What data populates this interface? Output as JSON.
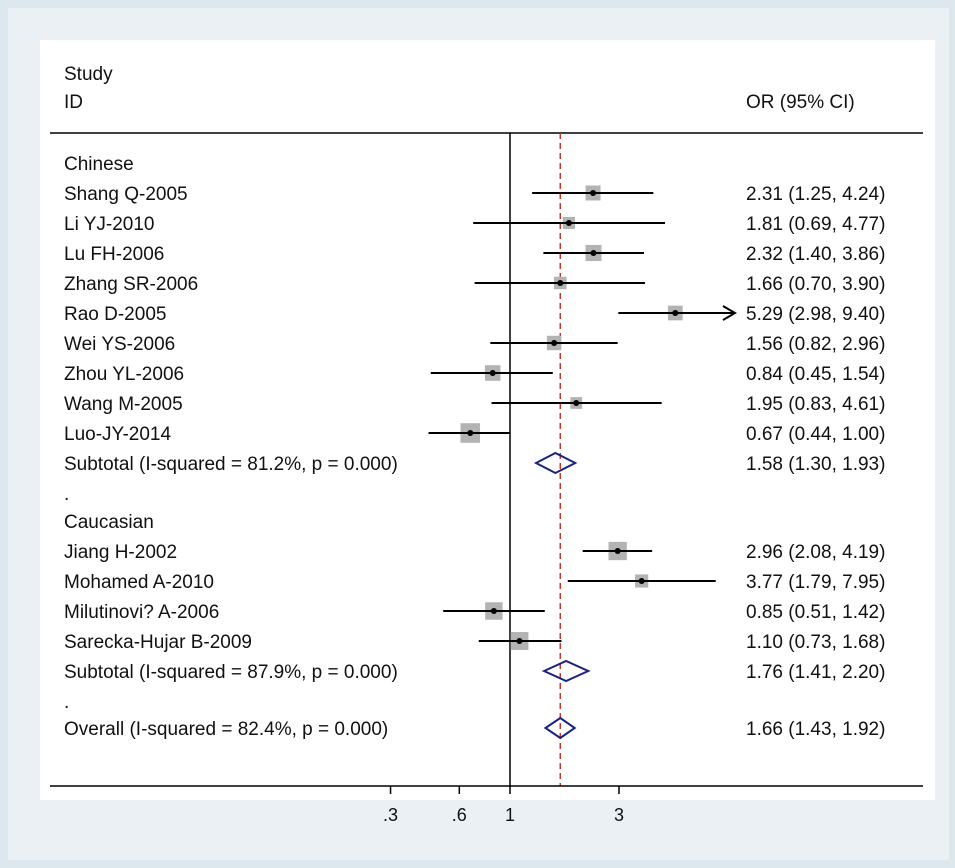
{
  "chart_data": {
    "type": "forest",
    "header": {
      "col1_line1": "Study",
      "col1_line2": "ID",
      "col2": "OR (95% CI)"
    },
    "x_scale": "log",
    "xlim": [
      0.3,
      10
    ],
    "null_line": 1,
    "overall_line": 1.66,
    "x_ticks": [
      {
        "value": 0.3,
        "label": ".3"
      },
      {
        "value": 0.6,
        "label": ".6"
      },
      {
        "value": 1,
        "label": "1"
      },
      {
        "value": 3,
        "label": "3"
      }
    ],
    "rows": [
      {
        "kind": "group",
        "label": "Chinese"
      },
      {
        "kind": "study",
        "label": "Shang Q-2005",
        "or": 2.31,
        "lo": 1.25,
        "hi": 4.24,
        "text": "2.31 (1.25, 4.24)",
        "weight": 1.0
      },
      {
        "kind": "study",
        "label": "Li YJ-2010",
        "or": 1.81,
        "lo": 0.69,
        "hi": 4.77,
        "text": "1.81 (0.69, 4.77)",
        "weight": 0.55
      },
      {
        "kind": "study",
        "label": "Lu FH-2006",
        "or": 2.32,
        "lo": 1.4,
        "hi": 3.86,
        "text": "2.32 (1.40, 3.86)",
        "weight": 1.2
      },
      {
        "kind": "study",
        "label": "Zhang SR-2006",
        "or": 1.66,
        "lo": 0.7,
        "hi": 3.9,
        "text": "1.66 (0.70, 3.90)",
        "weight": 0.6
      },
      {
        "kind": "study",
        "label": "Rao D-2005",
        "or": 5.29,
        "lo": 2.98,
        "hi": 9.4,
        "text": "5.29 (2.98, 9.40)",
        "weight": 0.95,
        "arrow": true
      },
      {
        "kind": "study",
        "label": "Wei YS-2006",
        "or": 1.56,
        "lo": 0.82,
        "hi": 2.96,
        "text": "1.56 (0.82, 2.96)",
        "weight": 0.9
      },
      {
        "kind": "study",
        "label": "Zhou YL-2006",
        "or": 0.84,
        "lo": 0.45,
        "hi": 1.54,
        "text": "0.84 (0.45, 1.54)",
        "weight": 1.1
      },
      {
        "kind": "study",
        "label": "Wang M-2005",
        "or": 1.95,
        "lo": 0.83,
        "hi": 4.61,
        "text": "1.95 (0.83, 4.61)",
        "weight": 0.5
      },
      {
        "kind": "study",
        "label": "Luo-JY-2014",
        "or": 0.67,
        "lo": 0.44,
        "hi": 1.0,
        "text": "0.67 (0.44, 1.00)",
        "weight": 2.0
      },
      {
        "kind": "subtotal",
        "label": "Subtotal  (I-squared = 81.2%, p = 0.000)",
        "or": 1.58,
        "lo": 1.3,
        "hi": 1.93,
        "text": "1.58 (1.30, 1.93)"
      },
      {
        "kind": "spacer",
        "label": "."
      },
      {
        "kind": "group",
        "label": "Caucasian"
      },
      {
        "kind": "study",
        "label": "Jiang H-2002",
        "or": 2.96,
        "lo": 2.08,
        "hi": 4.19,
        "text": "2.96 (2.08, 4.19)",
        "weight": 1.7
      },
      {
        "kind": "study",
        "label": "Mohamed A-2010",
        "or": 3.77,
        "lo": 1.79,
        "hi": 7.95,
        "text": "3.77 (1.79, 7.95)",
        "weight": 0.7
      },
      {
        "kind": "study",
        "label": "Milutinovi? A-2006",
        "or": 0.85,
        "lo": 0.51,
        "hi": 1.42,
        "text": "0.85 (0.51, 1.42)",
        "weight": 1.5
      },
      {
        "kind": "study",
        "label": "Sarecka-Hujar B-2009",
        "or": 1.1,
        "lo": 0.73,
        "hi": 1.68,
        "text": "1.10 (0.73, 1.68)",
        "weight": 1.6
      },
      {
        "kind": "subtotal",
        "label": "Subtotal  (I-squared = 87.9%, p = 0.000)",
        "or": 1.76,
        "lo": 1.41,
        "hi": 2.2,
        "text": "1.76 (1.41, 2.20)"
      },
      {
        "kind": "spacer",
        "label": "."
      },
      {
        "kind": "overall",
        "label": "Overall  (I-squared = 82.4%, p = 0.000)",
        "or": 1.66,
        "lo": 1.43,
        "hi": 1.92,
        "text": "1.66 (1.43, 1.92)"
      }
    ],
    "colors": {
      "page_bg": "#dde7ee",
      "panel_bg": "#ffffff",
      "ci_line": "#000000",
      "weight_box": "#b3b3b3",
      "diamond": "#1a237e",
      "overall_line": "#c0392b"
    }
  }
}
